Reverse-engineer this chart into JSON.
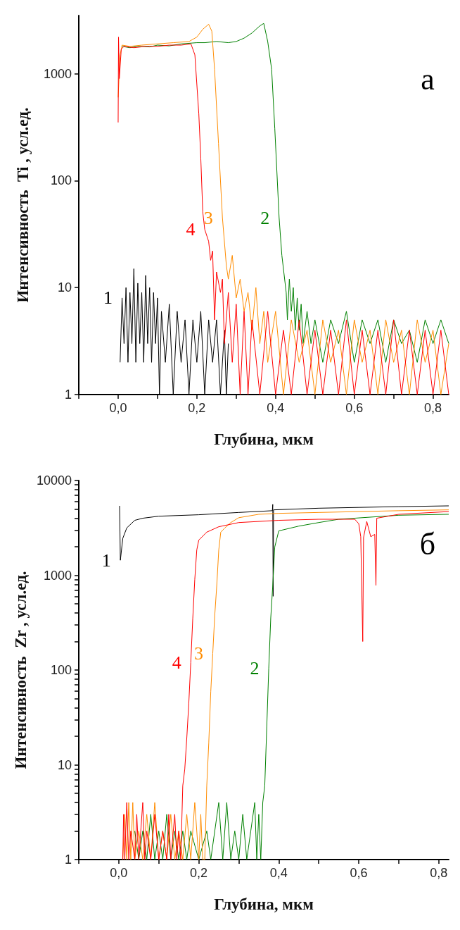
{
  "chart_data": [
    {
      "type": "line",
      "xlabel": "Глубина, мкм",
      "ylabel": "Интенсивность  Ti , усл.ед.",
      "log": "y",
      "xlim": [
        -0.1,
        0.84
      ],
      "ylim": [
        1,
        3500
      ],
      "xticks": [
        {
          "value": -0.1,
          "label": null
        },
        {
          "value": 0,
          "label": "0,0"
        },
        {
          "value": 0.1,
          "label": null
        },
        {
          "value": 0.2,
          "label": "0,2"
        },
        {
          "value": 0.3,
          "label": null
        },
        {
          "value": 0.4,
          "label": "0,4"
        },
        {
          "value": 0.5,
          "label": null
        },
        {
          "value": 0.6,
          "label": "0,6"
        },
        {
          "value": 0.7,
          "label": null
        },
        {
          "value": 0.8,
          "label": "0,8"
        }
      ],
      "yticks": [
        1,
        10,
        100,
        1000
      ],
      "series": [
        {
          "name": "1",
          "color": "#000000",
          "x": [
            0.005,
            0.01,
            0.015,
            0.02,
            0.025,
            0.03,
            0.035,
            0.04,
            0.045,
            0.05,
            0.055,
            0.06,
            0.065,
            0.07,
            0.075,
            0.08,
            0.085,
            0.09,
            0.095,
            0.1,
            0.105,
            0.11,
            0.12,
            0.13,
            0.14,
            0.15,
            0.16,
            0.17,
            0.18,
            0.19,
            0.2,
            0.21,
            0.22,
            0.23,
            0.24,
            0.25,
            0.26,
            0.27,
            0.275,
            0.28
          ],
          "values": [
            2,
            8,
            3,
            10,
            2,
            9,
            3,
            15,
            2,
            11,
            3,
            9,
            2,
            13,
            3,
            10,
            2,
            9,
            3,
            8,
            1,
            6,
            2,
            7,
            1,
            6,
            2,
            5,
            1,
            5,
            2,
            6,
            1,
            5,
            2,
            5,
            1,
            4,
            1,
            3
          ]
        },
        {
          "name": "2",
          "color": "#008000",
          "x": [
            0.01,
            0.03,
            0.05,
            0.08,
            0.1,
            0.13,
            0.16,
            0.2,
            0.22,
            0.25,
            0.28,
            0.3,
            0.32,
            0.34,
            0.36,
            0.37,
            0.38,
            0.39,
            0.398,
            0.409,
            0.416,
            0.427,
            0.43,
            0.435,
            0.44,
            0.445,
            0.45,
            0.455,
            0.46,
            0.465,
            0.47,
            0.48,
            0.49,
            0.5,
            0.52,
            0.54,
            0.56,
            0.58,
            0.6,
            0.62,
            0.64,
            0.66,
            0.68,
            0.7,
            0.72,
            0.74,
            0.76,
            0.78,
            0.8,
            0.82,
            0.84
          ],
          "values": [
            1800,
            1750,
            1800,
            1780,
            1850,
            1820,
            1900,
            1950,
            1950,
            2000,
            1950,
            2000,
            2150,
            2400,
            2800,
            2950,
            2000,
            1100,
            308,
            45,
            20,
            9,
            5,
            12,
            6,
            10,
            4,
            8,
            4,
            7,
            3,
            6,
            3,
            5,
            2,
            5,
            3,
            6,
            2,
            5,
            3,
            5,
            2,
            5,
            3,
            4,
            2,
            5,
            3,
            5,
            3
          ]
        },
        {
          "name": "3",
          "color": "#ff8c00",
          "x": [
            0.0,
            0.005,
            0.01,
            0.03,
            0.06,
            0.1,
            0.14,
            0.18,
            0.2,
            0.215,
            0.23,
            0.238,
            0.245,
            0.255,
            0.265,
            0.275,
            0.28,
            0.29,
            0.3,
            0.31,
            0.32,
            0.33,
            0.34,
            0.35,
            0.36,
            0.37,
            0.38,
            0.4,
            0.42,
            0.44,
            0.46,
            0.48,
            0.5,
            0.52,
            0.54,
            0.56,
            0.58,
            0.6,
            0.62,
            0.64,
            0.66,
            0.68,
            0.7,
            0.72,
            0.74,
            0.76,
            0.78,
            0.8,
            0.82,
            0.84
          ],
          "values": [
            600,
            1500,
            1850,
            1800,
            1850,
            1900,
            1950,
            2000,
            2200,
            2600,
            2900,
            2500,
            1100,
            223,
            45,
            16,
            12,
            20,
            8,
            12,
            6,
            9,
            4,
            10,
            3,
            6,
            2,
            6,
            1,
            5,
            2,
            4,
            1,
            5,
            2,
            4,
            1,
            5,
            2,
            4,
            1,
            5,
            2,
            4,
            1,
            5,
            2,
            4,
            1,
            3
          ]
        },
        {
          "name": "4",
          "color": "#ff0000",
          "x": [
            0.0,
            0.001,
            0.003,
            0.008,
            0.015,
            0.04,
            0.07,
            0.1,
            0.13,
            0.16,
            0.185,
            0.195,
            0.205,
            0.21,
            0.215,
            0.22,
            0.23,
            0.235,
            0.24,
            0.245,
            0.25,
            0.26,
            0.265,
            0.27,
            0.28,
            0.29,
            0.3,
            0.31,
            0.32,
            0.33,
            0.34,
            0.36,
            0.38,
            0.4,
            0.42,
            0.44,
            0.46,
            0.48,
            0.5,
            0.52,
            0.54,
            0.56,
            0.58,
            0.6,
            0.62,
            0.64,
            0.66,
            0.68,
            0.7,
            0.72,
            0.74,
            0.76,
            0.78,
            0.8,
            0.82,
            0.84
          ],
          "values": [
            350,
            2200,
            900,
            1700,
            1800,
            1750,
            1800,
            1800,
            1850,
            1850,
            1900,
            1500,
            420,
            163,
            51,
            35,
            27,
            18,
            22,
            5,
            14,
            9,
            12,
            3,
            9,
            2,
            7,
            1,
            6,
            1,
            5,
            1,
            6,
            1,
            4,
            1,
            5,
            1,
            4,
            1,
            4,
            1,
            5,
            1,
            4,
            1,
            4,
            1,
            5,
            1,
            4,
            1,
            4,
            1,
            4,
            1
          ]
        }
      ],
      "annotations": [
        "а"
      ]
    },
    {
      "type": "line",
      "xlabel": "Глубина, мкм",
      "ylabel": "Интенсивность  Zr , усл.ед.",
      "log": "y",
      "xlim": [
        -0.1,
        0.825
      ],
      "ylim": [
        1,
        10000
      ],
      "xticks": [
        {
          "value": -0.1,
          "label": null
        },
        {
          "value": 0,
          "label": "0,0"
        },
        {
          "value": 0.1,
          "label": null
        },
        {
          "value": 0.2,
          "label": "0,2"
        },
        {
          "value": 0.3,
          "label": null
        },
        {
          "value": 0.4,
          "label": "0,4"
        },
        {
          "value": 0.5,
          "label": null
        },
        {
          "value": 0.6,
          "label": "0,6"
        },
        {
          "value": 0.7,
          "label": null
        },
        {
          "value": 0.8,
          "label": "0,8"
        }
      ],
      "yticks": [
        1,
        {
          "value": 2,
          "label": null
        },
        {
          "value": 3,
          "label": null
        },
        {
          "value": 4,
          "label": null
        },
        {
          "value": 5,
          "label": null
        },
        {
          "value": 6,
          "label": null
        },
        {
          "value": 7,
          "label": null
        },
        {
          "value": 8,
          "label": null
        },
        {
          "value": 9,
          "label": null
        },
        10,
        {
          "value": 20,
          "label": null
        },
        {
          "value": 30,
          "label": null
        },
        {
          "value": 40,
          "label": null
        },
        {
          "value": 50,
          "label": null
        },
        {
          "value": 60,
          "label": null
        },
        {
          "value": 70,
          "label": null
        },
        {
          "value": 80,
          "label": null
        },
        {
          "value": 90,
          "label": null
        },
        100,
        {
          "value": 200,
          "label": null
        },
        {
          "value": 300,
          "label": null
        },
        {
          "value": 400,
          "label": null
        },
        {
          "value": 500,
          "label": null
        },
        {
          "value": 600,
          "label": null
        },
        {
          "value": 700,
          "label": null
        },
        {
          "value": 800,
          "label": null
        },
        {
          "value": 900,
          "label": null
        },
        1000,
        {
          "value": 2000,
          "label": null
        },
        {
          "value": 3000,
          "label": null
        },
        {
          "value": 4000,
          "label": null
        },
        {
          "value": 5000,
          "label": null
        },
        {
          "value": 6000,
          "label": null
        },
        {
          "value": 7000,
          "label": null
        },
        {
          "value": 8000,
          "label": null
        },
        {
          "value": 9000,
          "label": null
        },
        10000
      ],
      "series": [
        {
          "name": "1",
          "color": "#000000",
          "x": [
            0.002,
            0.004,
            0.01,
            0.02,
            0.04,
            0.06,
            0.1,
            0.2,
            0.3,
            0.384,
            0.385,
            0.386,
            0.387,
            0.5,
            0.6,
            0.7,
            0.825
          ],
          "values": [
            5400,
            1440,
            2450,
            3160,
            3800,
            4000,
            4200,
            4350,
            4600,
            4800,
            5600,
            600,
            4900,
            5100,
            5200,
            5300,
            5400
          ]
        },
        {
          "name": "2",
          "color": "#008000",
          "x": [
            0.04,
            0.05,
            0.06,
            0.07,
            0.08,
            0.09,
            0.1,
            0.11,
            0.12,
            0.13,
            0.14,
            0.15,
            0.16,
            0.17,
            0.18,
            0.2,
            0.22,
            0.23,
            0.25,
            0.26,
            0.27,
            0.28,
            0.29,
            0.3,
            0.31,
            0.32,
            0.33,
            0.34,
            0.345,
            0.35,
            0.355,
            0.36,
            0.365,
            0.37,
            0.375,
            0.38,
            0.385,
            0.39,
            0.4,
            0.45,
            0.5,
            0.55,
            0.7,
            0.825
          ],
          "values": [
            2,
            1,
            2,
            1,
            3,
            1,
            2,
            1,
            3,
            1,
            2,
            1,
            2,
            1,
            2,
            1,
            2,
            1,
            4,
            1,
            4,
            1,
            2,
            1,
            3,
            1,
            2,
            4,
            1,
            3,
            1,
            4,
            6,
            25,
            104,
            355,
            780,
            1990,
            2940,
            3300,
            3600,
            3900,
            4300,
            4400
          ]
        },
        {
          "name": "3",
          "color": "#ff8c00",
          "x": [
            0.01,
            0.015,
            0.02,
            0.025,
            0.03,
            0.035,
            0.04,
            0.05,
            0.06,
            0.07,
            0.08,
            0.09,
            0.1,
            0.11,
            0.12,
            0.13,
            0.14,
            0.15,
            0.16,
            0.17,
            0.18,
            0.19,
            0.2,
            0.205,
            0.21,
            0.215,
            0.22,
            0.225,
            0.23,
            0.235,
            0.24,
            0.245,
            0.25,
            0.255,
            0.265,
            0.28,
            0.3,
            0.35,
            0.4,
            0.5,
            0.6,
            0.7,
            0.825
          ],
          "values": [
            1,
            3,
            1,
            4,
            1,
            4,
            1,
            2,
            1,
            3,
            1,
            4,
            1,
            2,
            1,
            3,
            1,
            2,
            1,
            3,
            1,
            4,
            1,
            3,
            1,
            1,
            6,
            17,
            59,
            150,
            380,
            780,
            1850,
            2850,
            3150,
            3600,
            4050,
            4400,
            4500,
            4600,
            4700,
            4800,
            4900
          ]
        },
        {
          "name": "4",
          "color": "#ff0000",
          "x": [
            0.01,
            0.012,
            0.015,
            0.02,
            0.025,
            0.03,
            0.04,
            0.045,
            0.05,
            0.06,
            0.065,
            0.07,
            0.08,
            0.09,
            0.1,
            0.11,
            0.12,
            0.125,
            0.13,
            0.14,
            0.145,
            0.15,
            0.155,
            0.16,
            0.165,
            0.17,
            0.175,
            0.18,
            0.185,
            0.19,
            0.195,
            0.2,
            0.22,
            0.25,
            0.3,
            0.4,
            0.5,
            0.59,
            0.6,
            0.605,
            0.61,
            0.612,
            0.62,
            0.63,
            0.64,
            0.643,
            0.645,
            0.7,
            0.825
          ],
          "values": [
            1,
            3,
            1,
            4,
            1,
            2,
            1,
            3,
            1,
            4,
            1,
            2,
            1,
            3,
            1,
            2,
            1,
            3,
            1,
            3,
            1,
            2,
            1,
            6,
            9,
            19,
            44,
            120,
            350,
            900,
            1850,
            2350,
            2850,
            3250,
            3600,
            3800,
            3900,
            3900,
            3500,
            2550,
            200,
            2500,
            3700,
            2550,
            2700,
            780,
            4000,
            4400,
            4700
          ]
        }
      ],
      "annotations": [
        "б"
      ]
    }
  ]
}
